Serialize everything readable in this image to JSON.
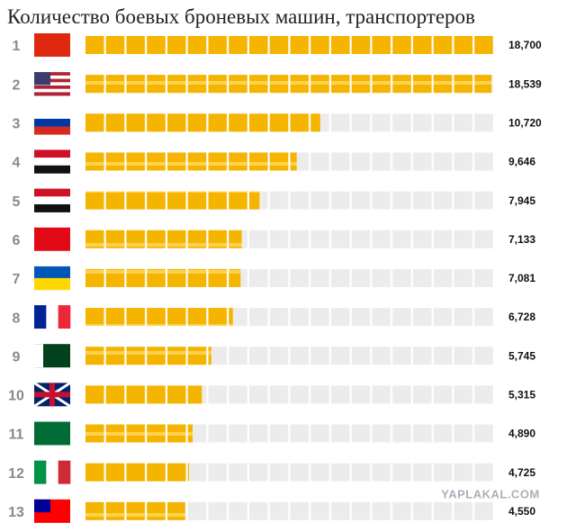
{
  "chart_data": {
    "type": "bar",
    "orientation": "horizontal",
    "title": "Количество боевых броневых машин, транспортеров",
    "categories": [
      "1",
      "2",
      "3",
      "4",
      "5",
      "6",
      "7",
      "8",
      "9",
      "10",
      "11",
      "12",
      "13"
    ],
    "values": [
      18700,
      18539,
      10720,
      9646,
      7945,
      7133,
      7081,
      6728,
      5745,
      5315,
      4890,
      4725,
      4550
    ],
    "value_labels": [
      "18,700",
      "18,539",
      "10,720",
      "9,646",
      "7,945",
      "7,133",
      "7,081",
      "6,728",
      "5,745",
      "5,315",
      "4,890",
      "4,725",
      "4,550"
    ],
    "color": "#f2b400",
    "annotation": "YAPLAKAL.COM"
  }
}
